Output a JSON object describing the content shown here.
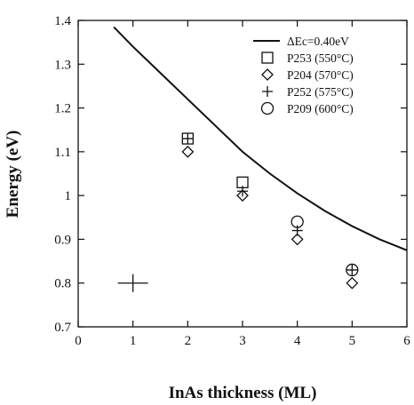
{
  "chart_data": {
    "type": "scatter",
    "xlabel": "InAs thickness (ML)",
    "ylabel": "Energy (eV)",
    "xlim": [
      0,
      6
    ],
    "ylim": [
      0.7,
      1.4
    ],
    "x_ticks": [
      "0",
      "1",
      "2",
      "3",
      "4",
      "5",
      "6"
    ],
    "y_ticks": [
      "0.7",
      "0.8",
      "0.9",
      "1",
      "1.1",
      "1.2",
      "1.3",
      "1.4"
    ],
    "legend_position": "top-right",
    "curve": {
      "name": "ΔEc=0.40eV",
      "style": "solid-line",
      "x": [
        0.65,
        1.0,
        1.5,
        2.0,
        2.5,
        3.0,
        3.5,
        4.0,
        4.5,
        5.0,
        5.5,
        6.0
      ],
      "y": [
        1.385,
        1.34,
        1.28,
        1.22,
        1.16,
        1.1,
        1.05,
        1.005,
        0.965,
        0.93,
        0.9,
        0.875
      ]
    },
    "series": [
      {
        "name": "P253 (550°C)",
        "marker": "square",
        "x": [
          2,
          3
        ],
        "y": [
          1.13,
          1.03
        ]
      },
      {
        "name": "P204 (570°C)",
        "marker": "diamond",
        "x": [
          2,
          3,
          4,
          5
        ],
        "y": [
          1.1,
          1.0,
          0.9,
          0.8
        ]
      },
      {
        "name": "P252 (575°C)",
        "marker": "plus",
        "x": [
          2,
          3,
          4,
          5
        ],
        "y": [
          1.13,
          1.01,
          0.92,
          0.83
        ]
      },
      {
        "name": "P209 (600°C)",
        "marker": "circle",
        "x": [
          4,
          5
        ],
        "y": [
          0.94,
          0.83
        ]
      }
    ],
    "error_bar_marker": {
      "marker": "plus-large",
      "x": 1,
      "y": 0.8
    }
  }
}
